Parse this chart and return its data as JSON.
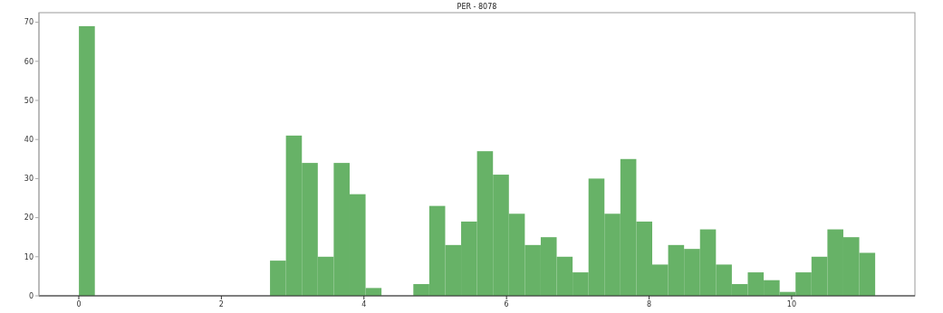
{
  "chart_data": {
    "type": "histogram",
    "title": "PER - 8078",
    "bins": [
      0,
      0.2234,
      0.4468,
      0.6702,
      0.8936,
      1.117,
      1.3404,
      1.5638,
      1.7872,
      2.0106,
      2.234,
      2.4574,
      2.6808,
      2.9042,
      3.1276,
      3.351,
      3.5744,
      3.7978,
      4.0212,
      4.2446,
      4.468,
      4.6914,
      4.9148,
      5.1382,
      5.3616,
      5.585,
      5.8084,
      6.0318,
      6.2552,
      6.4786,
      6.702,
      6.9254,
      7.1488,
      7.3722,
      7.5956,
      7.819,
      8.0424,
      8.2658,
      8.4892,
      8.7126,
      8.936,
      9.1594,
      9.3828,
      9.6062,
      9.8296,
      10.053,
      10.2764,
      10.4998,
      10.7232,
      10.9466,
      11.17
    ],
    "values": [
      69,
      0,
      0,
      0,
      0,
      0,
      0,
      0,
      0,
      0,
      0,
      0,
      9,
      41,
      34,
      10,
      34,
      26,
      2,
      0,
      0,
      3,
      23,
      13,
      19,
      37,
      31,
      21,
      13,
      15,
      10,
      6,
      30,
      21,
      35,
      19,
      8,
      13,
      12,
      17,
      8,
      3,
      6,
      4,
      1,
      6,
      10,
      17,
      15,
      11
    ],
    "color": "#67b267",
    "xlim": [
      -0.559,
      11.729
    ],
    "xticks": [
      0,
      2,
      4,
      6,
      8,
      10
    ],
    "ylim": [
      0,
      72.45
    ],
    "yticks": [
      0,
      10,
      20,
      30,
      40,
      50,
      60,
      70
    ],
    "grid": false
  }
}
